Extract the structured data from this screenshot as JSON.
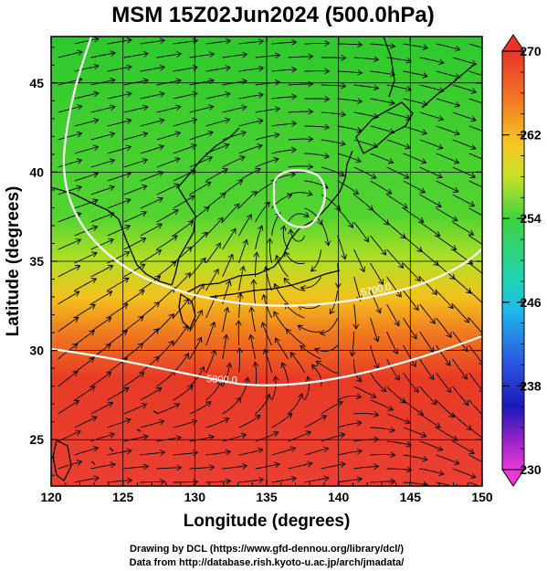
{
  "title": "MSM 15Z02Jun2024 (500.0hPa)",
  "x_axis": {
    "label": "Longitude (degrees)",
    "range": [
      120,
      150
    ],
    "ticks": [
      "120",
      "125",
      "130",
      "135",
      "140",
      "145",
      "150"
    ]
  },
  "y_axis": {
    "label": "Latitude  (degrees)",
    "range": [
      22.4,
      47.6
    ],
    "ticks": [
      "25",
      "30",
      "35",
      "40",
      "45"
    ]
  },
  "colorbar": {
    "range": [
      230,
      270
    ],
    "ticks": [
      "270",
      "262",
      "254",
      "246",
      "238",
      "230"
    ]
  },
  "contours": [
    {
      "label": "5700.0"
    },
    {
      "label": "5800.0"
    }
  ],
  "credits": {
    "line1": "Drawing by DCL (https://www.gfd-dennou.org/library/dcl/)",
    "line2": "Data from http://database.rish.kyoto-u.ac.jp/arch/jmadata/"
  },
  "colors": {
    "warm": "#e8322a",
    "mid": "#f5a623",
    "cool": "#2fd12f",
    "contour": "#ffffff",
    "streamline": "#000000",
    "coastline": "#000000"
  }
}
